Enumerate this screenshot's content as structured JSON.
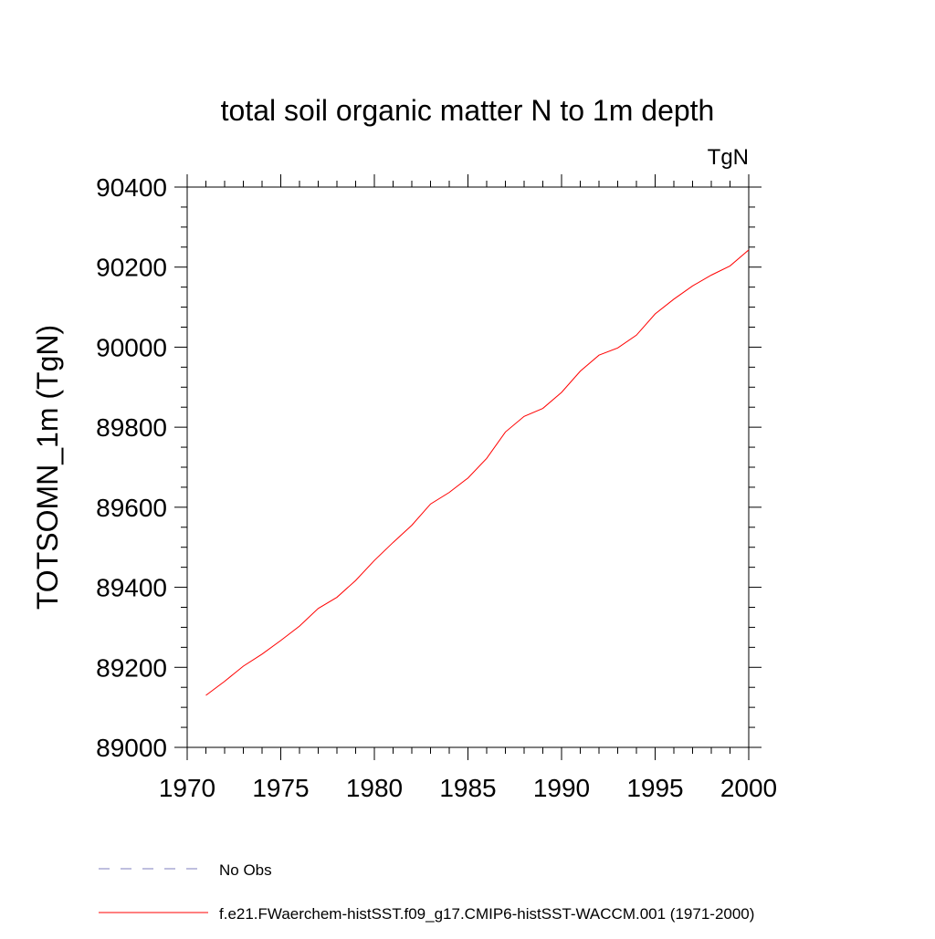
{
  "chart_data": {
    "type": "line",
    "title": "total soil organic matter N to 1m depth",
    "units_label": "TgN",
    "xlabel": "",
    "ylabel": "TOTSOMN_1m  (TgN)",
    "xlim": [
      1970,
      2000
    ],
    "ylim": [
      89000,
      90400
    ],
    "x_ticks": [
      "1970",
      "1975",
      "1980",
      "1985",
      "1990",
      "1995",
      "2000"
    ],
    "y_ticks": [
      "89000",
      "89200",
      "89400",
      "89600",
      "89800",
      "90000",
      "90200",
      "90400"
    ],
    "grid": false,
    "legend_placement": "bottom",
    "series": [
      {
        "name": "No Obs",
        "color": "#7f7fbf",
        "style": "dashed",
        "x": [],
        "y": []
      },
      {
        "name": "f.e21.FWaerchem-histSST.f09_g17.CMIP6-histSST-WACCM.001 (1971-2000)",
        "color": "#ff0000",
        "style": "solid",
        "x": [
          1971,
          1972,
          1973,
          1974,
          1975,
          1976,
          1977,
          1978,
          1979,
          1980,
          1981,
          1982,
          1983,
          1984,
          1985,
          1986,
          1987,
          1988,
          1989,
          1990,
          1991,
          1992,
          1993,
          1994,
          1995,
          1996,
          1997,
          1998,
          1999,
          2000
        ],
        "y": [
          89130,
          89165,
          89203,
          89233,
          89267,
          89303,
          89347,
          89375,
          89417,
          89467,
          89512,
          89555,
          89608,
          89637,
          89673,
          89722,
          89788,
          89827,
          89847,
          89887,
          89940,
          89980,
          89998,
          90030,
          90083,
          90120,
          90153,
          90180,
          90203,
          90243
        ]
      }
    ]
  }
}
